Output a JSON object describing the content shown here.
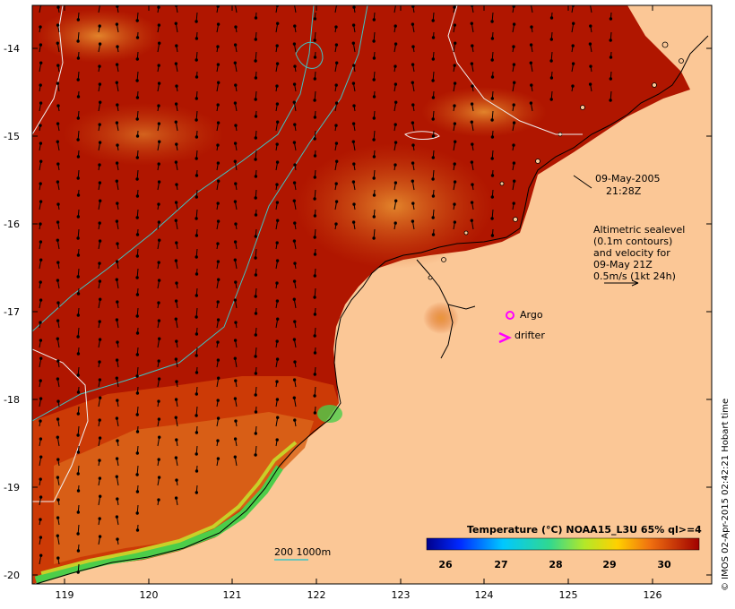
{
  "map": {
    "date": "09-May-2005",
    "time": "21:28Z",
    "legend_lines": [
      "Altimetric sealevel",
      "(0.1m contours)",
      "and velocity for",
      "09-May 21Z",
      "0.5m/s (1kt 24h)"
    ],
    "markers": {
      "argo": "Argo",
      "drifter": "drifter"
    },
    "depth_scale": "200  1000m",
    "colorbar": {
      "title": "Temperature (°C) NOAA15_L3U 65% ql>=4",
      "ticks": [
        "26",
        "27",
        "28",
        "29",
        "30"
      ]
    },
    "credit": "© IMOS 02-Apr-2015 02:42:21 Hobart time",
    "lat_ticks": [
      "-14",
      "-15",
      "-16",
      "-17",
      "-18",
      "-19",
      "-20"
    ],
    "lon_ticks": [
      "119",
      "120",
      "121",
      "122",
      "123",
      "124",
      "125",
      "126"
    ],
    "colors": {
      "land": "#fbc796",
      "ocean_warm": "#b01600",
      "ocean_mid": "#d63a05",
      "ocean_cool": "#e07a18",
      "coast_green": "#4ccd4a",
      "contour_white": "#f0f0f0",
      "contour_cyan": "#40c4c4",
      "marker": "#ff00ff"
    }
  }
}
